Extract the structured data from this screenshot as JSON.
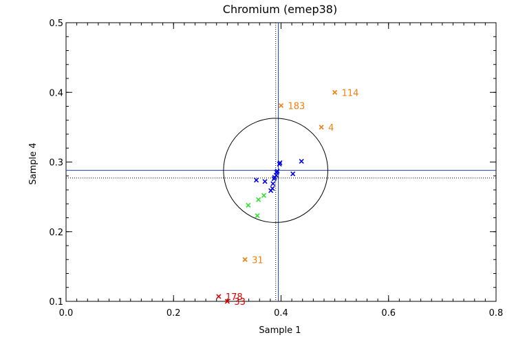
{
  "chart_data": {
    "type": "scatter",
    "title": "Chromium (emep38)",
    "xlabel": "Sample 1",
    "ylabel": "Sample 4",
    "xlim": [
      0.0,
      0.8
    ],
    "ylim": [
      0.1,
      0.5
    ],
    "xticks": [
      0.0,
      0.2,
      0.4,
      0.6,
      0.8
    ],
    "xtick_labels": [
      "0.0",
      "0.2",
      "0.4",
      "0.6",
      "0.8"
    ],
    "yticks": [
      0.1,
      0.2,
      0.3,
      0.4,
      0.5
    ],
    "ytick_labels": [
      "0.1",
      "0.2",
      "0.3",
      "0.4",
      "0.5"
    ],
    "colors": {
      "axis": "#000000",
      "reference": "#1f3fa8",
      "orange": "#f07f10",
      "blue": "#0000e0",
      "green": "#30e030",
      "red": "#e00000"
    },
    "reference": {
      "mean_x": 0.395,
      "mean_y": 0.288,
      "dotted_x": 0.39,
      "dotted_y": 0.277,
      "circle_center": [
        0.39,
        0.288
      ],
      "circle_radius_x": 0.097
    },
    "series": [
      {
        "name": "orange",
        "color": "#f07f10",
        "points": [
          {
            "x": 0.5,
            "y": 0.4,
            "label": "114"
          },
          {
            "x": 0.4,
            "y": 0.381,
            "label": "183"
          },
          {
            "x": 0.475,
            "y": 0.35,
            "label": "4"
          },
          {
            "x": 0.333,
            "y": 0.16,
            "label": "31"
          }
        ]
      },
      {
        "name": "blue",
        "color": "#0000e0",
        "points": [
          {
            "x": 0.438,
            "y": 0.301
          },
          {
            "x": 0.398,
            "y": 0.299
          },
          {
            "x": 0.397,
            "y": 0.297
          },
          {
            "x": 0.393,
            "y": 0.287
          },
          {
            "x": 0.392,
            "y": 0.285
          },
          {
            "x": 0.391,
            "y": 0.281
          },
          {
            "x": 0.388,
            "y": 0.278
          },
          {
            "x": 0.387,
            "y": 0.276
          },
          {
            "x": 0.422,
            "y": 0.283
          },
          {
            "x": 0.354,
            "y": 0.274
          },
          {
            "x": 0.37,
            "y": 0.272
          },
          {
            "x": 0.385,
            "y": 0.269
          },
          {
            "x": 0.384,
            "y": 0.262
          },
          {
            "x": 0.381,
            "y": 0.259
          }
        ]
      },
      {
        "name": "green",
        "color": "#30e030",
        "points": [
          {
            "x": 0.368,
            "y": 0.252
          },
          {
            "x": 0.358,
            "y": 0.246
          },
          {
            "x": 0.339,
            "y": 0.238
          },
          {
            "x": 0.356,
            "y": 0.223
          }
        ]
      },
      {
        "name": "red",
        "color": "#e00000",
        "points": [
          {
            "x": 0.284,
            "y": 0.107,
            "label": "178"
          },
          {
            "x": 0.3,
            "y": 0.1,
            "label": "33"
          }
        ]
      }
    ]
  }
}
